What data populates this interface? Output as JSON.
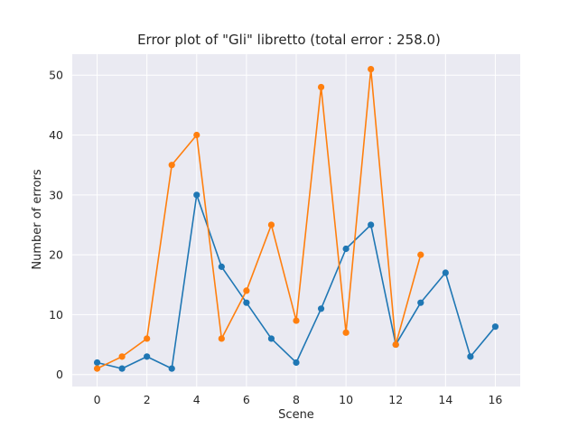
{
  "chart_data": {
    "type": "line",
    "title": "Error plot of \"Gli\" libretto (total error : 258.0)",
    "xlabel": "Scene",
    "ylabel": "Number of errors",
    "xlim": [
      -1,
      17
    ],
    "ylim": [
      -2,
      53.5
    ],
    "xticks": [
      "0",
      "2",
      "4",
      "6",
      "8",
      "10",
      "12",
      "14",
      "16"
    ],
    "yticks": [
      "0",
      "10",
      "20",
      "30",
      "40",
      "50"
    ],
    "grid": true,
    "legend": "none",
    "background": "#eaeaf2",
    "series": [
      {
        "color": "#1f77b4",
        "x": [
          0,
          1,
          2,
          3,
          4,
          5,
          6,
          7,
          8,
          9,
          10,
          11,
          12,
          13,
          14,
          15,
          16
        ],
        "y": [
          2,
          1,
          3,
          1,
          30,
          18,
          12,
          6,
          2,
          11,
          21,
          25,
          5,
          12,
          17,
          3,
          8
        ]
      },
      {
        "color": "#ff7f0e",
        "x": [
          0,
          1,
          2,
          3,
          4,
          5,
          6,
          7,
          8,
          9,
          10,
          11,
          12,
          13
        ],
        "y": [
          1,
          3,
          6,
          35,
          40,
          6,
          14,
          25,
          9,
          48,
          7,
          51,
          5,
          20
        ]
      }
    ]
  }
}
